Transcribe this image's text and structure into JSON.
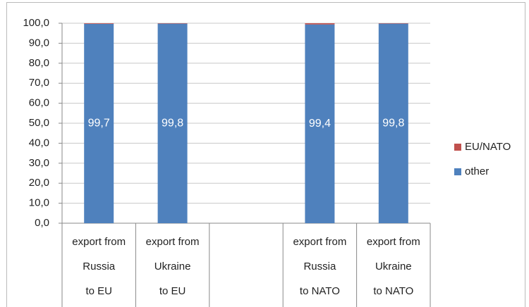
{
  "chart_data": {
    "type": "stacked_bar",
    "categories": [
      [
        "export from",
        "Russia",
        "to EU"
      ],
      [
        "export from",
        "Ukraine",
        "to EU"
      ],
      null,
      [
        "export from",
        "Russia",
        "to NATO"
      ],
      [
        "export from",
        "Ukraine",
        "to NATO"
      ]
    ],
    "series": [
      {
        "name": "other",
        "color": "#4f81bd",
        "values": [
          99.7,
          99.8,
          null,
          99.4,
          99.8
        ],
        "value_labels": [
          "99,7",
          "99,8",
          null,
          "99,4",
          "99,8"
        ]
      },
      {
        "name": "EU/NATO",
        "color": "#c0504d",
        "values": [
          0.3,
          0.2,
          null,
          0.6,
          0.2
        ]
      }
    ],
    "ylim": [
      0,
      100
    ],
    "yticks": [
      {
        "value": 0,
        "label": "0,0"
      },
      {
        "value": 10,
        "label": "10,0"
      },
      {
        "value": 20,
        "label": "20,0"
      },
      {
        "value": 30,
        "label": "30,0"
      },
      {
        "value": 40,
        "label": "40,0"
      },
      {
        "value": 50,
        "label": "50,0"
      },
      {
        "value": 60,
        "label": "60,0"
      },
      {
        "value": 70,
        "label": "70,0"
      },
      {
        "value": 80,
        "label": "80,0"
      },
      {
        "value": 90,
        "label": "90,0"
      },
      {
        "value": 100,
        "label": "100,0"
      }
    ],
    "grid": true,
    "legend": "right"
  }
}
